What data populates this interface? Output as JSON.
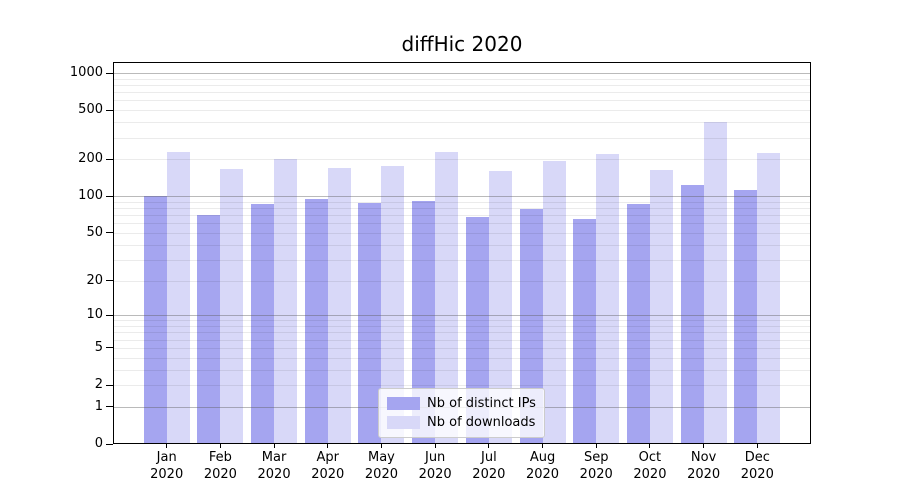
{
  "chart_data": {
    "type": "bar",
    "title": "diffHic 2020",
    "scale": "log1p",
    "grid": true,
    "legend_position": "inside-bottom-center",
    "year": "2020",
    "months": [
      "Jan",
      "Feb",
      "Mar",
      "Apr",
      "May",
      "Jun",
      "Jul",
      "Aug",
      "Sep",
      "Oct",
      "Nov",
      "Dec"
    ],
    "categories": [
      "Jan 2020",
      "Feb 2020",
      "Mar 2020",
      "Apr 2020",
      "May 2020",
      "Jun 2020",
      "Jul 2020",
      "Aug 2020",
      "Sep 2020",
      "Oct 2020",
      "Nov 2020",
      "Dec 2020"
    ],
    "series": [
      {
        "name": "Nb of distinct IPs",
        "color": "#a5a5f0",
        "values": [
          100,
          70,
          86,
          95,
          88,
          92,
          68,
          78,
          65,
          86,
          124,
          112
        ]
      },
      {
        "name": "Nb of downloads",
        "color": "#d8d8f8",
        "values": [
          228,
          166,
          200,
          171,
          177,
          228,
          162,
          194,
          222,
          164,
          400,
          227
        ]
      }
    ],
    "yticks": [
      0,
      1,
      2,
      5,
      10,
      20,
      50,
      100,
      200,
      500,
      1000
    ],
    "ylim": [
      0,
      1230
    ],
    "xlabel": "",
    "ylabel": ""
  }
}
